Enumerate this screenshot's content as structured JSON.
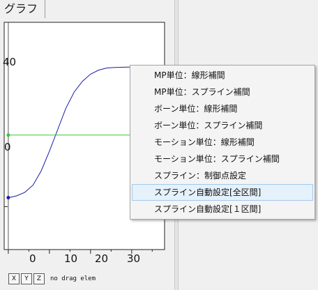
{
  "tab": {
    "label": "グラフ"
  },
  "chart_data": {
    "type": "line",
    "xlim": [
      -1,
      38
    ],
    "ylim": [
      -64,
      63
    ],
    "x_ticks": [
      "0",
      "10",
      "20",
      "30"
    ],
    "y_ticks": [
      "40",
      "0"
    ],
    "series": [
      {
        "values": [
          [
            0,
            -35
          ],
          [
            2,
            -34
          ],
          [
            4,
            -32
          ],
          [
            6,
            -28
          ],
          [
            8,
            -20
          ],
          [
            10,
            -9
          ],
          [
            12,
            3
          ],
          [
            14,
            15
          ],
          [
            16,
            24
          ],
          [
            18,
            30
          ],
          [
            20,
            34
          ],
          [
            22,
            36.3
          ],
          [
            24,
            37.5
          ],
          [
            26,
            37.8
          ],
          [
            28,
            37.9
          ],
          [
            30,
            38
          ]
        ],
        "color": "#1a1aa8"
      },
      {
        "values": [
          [
            0,
            0
          ],
          [
            30,
            0
          ]
        ],
        "color": "#33cc33"
      }
    ],
    "control_points": [
      [
        0,
        -35
      ],
      [
        30,
        38
      ],
      [
        0,
        0
      ],
      [
        30,
        0
      ]
    ]
  },
  "axis_buttons": [
    "X",
    "Y",
    "Z"
  ],
  "status": "no drag elem",
  "context_menu": {
    "items": [
      {
        "label": "MP単位：線形補間"
      },
      {
        "label": "MP単位：スプライン補間"
      },
      {
        "label": "ボーン単位：線形補間"
      },
      {
        "label": "ボーン単位：スプライン補間"
      },
      {
        "label": "モーション単位：線形補間"
      },
      {
        "label": "モーション単位：スプライン補間"
      },
      {
        "label": "スプライン：制御点設定"
      },
      {
        "label": "スプライン自動設定[全区間]",
        "highlighted": true
      },
      {
        "label": "スプライン自動設定[１区間]"
      }
    ]
  }
}
